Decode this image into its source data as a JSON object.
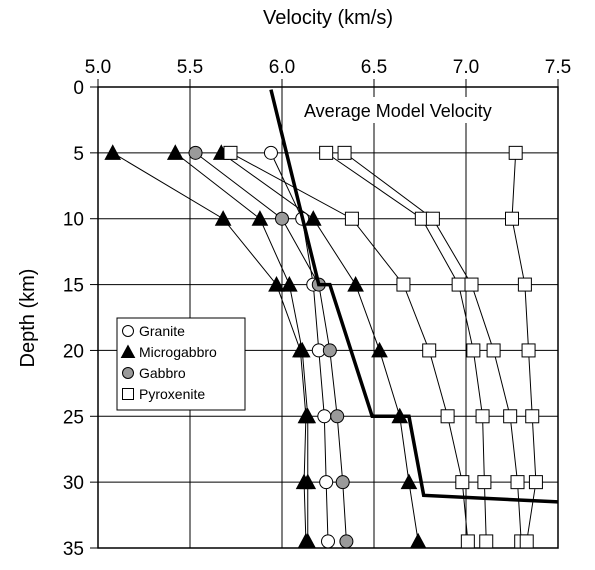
{
  "chart_data": {
    "type": "line",
    "x_label": "Velocity (km/s)",
    "y_label": "Depth (km)",
    "xlim": [
      5.0,
      7.5
    ],
    "ylim": [
      0,
      35
    ],
    "y_inverted": true,
    "x_axis_position": "top",
    "grid": true,
    "xticks": [
      {
        "value": 5.0,
        "label": "5.0"
      },
      5.5,
      {
        "value": 6.0,
        "label": "6.0"
      },
      6.5,
      {
        "value": 7.0,
        "label": "7.0"
      },
      7.5
    ],
    "yticks": [
      0,
      5,
      10,
      15,
      20,
      25,
      30,
      35
    ],
    "legend_position": "center-left",
    "depths": [
      5,
      10,
      15,
      20,
      25,
      30,
      34.5
    ],
    "series": [
      {
        "name": "Granite",
        "marker": "circle",
        "color": "#ffffff",
        "lines": [
          [
            5.94,
            6.11,
            6.17,
            6.2,
            6.23,
            6.24,
            6.25
          ]
        ]
      },
      {
        "name": "Microgabbro",
        "marker": "triangle",
        "color": "#000000",
        "lines": [
          [
            5.08,
            5.68,
            5.97,
            6.1,
            6.13,
            6.12,
            6.13
          ],
          [
            5.42,
            5.88,
            6.04,
            6.11,
            6.14,
            6.14,
            6.14
          ],
          [
            5.67,
            6.17,
            6.4,
            6.53,
            6.64,
            6.69,
            6.74
          ]
        ]
      },
      {
        "name": "Gabbro",
        "marker": "circle",
        "color": "#9a9a9a",
        "lines": [
          [
            5.53,
            6.0,
            6.2,
            6.26,
            6.3,
            6.33,
            6.35
          ]
        ]
      },
      {
        "name": "Pyroxenite",
        "marker": "square",
        "color": "#ffffff",
        "lines": [
          [
            5.72,
            6.38,
            6.66,
            6.8,
            6.9,
            6.98,
            7.01
          ],
          [
            6.24,
            6.76,
            6.96,
            7.04,
            7.09,
            7.1,
            7.11
          ],
          [
            6.34,
            6.82,
            7.03,
            7.15,
            7.24,
            7.28,
            7.3
          ],
          [
            7.27,
            7.25,
            7.32,
            7.34,
            7.36,
            7.38,
            7.33
          ]
        ]
      }
    ],
    "model": {
      "label": "Average Model Velocity",
      "color": "#000000",
      "x": [
        5.94,
        6.2,
        6.26,
        6.49,
        6.69,
        6.77,
        7.5
      ],
      "y": [
        0.2,
        15,
        15,
        25,
        25,
        31,
        31.5
      ]
    }
  }
}
